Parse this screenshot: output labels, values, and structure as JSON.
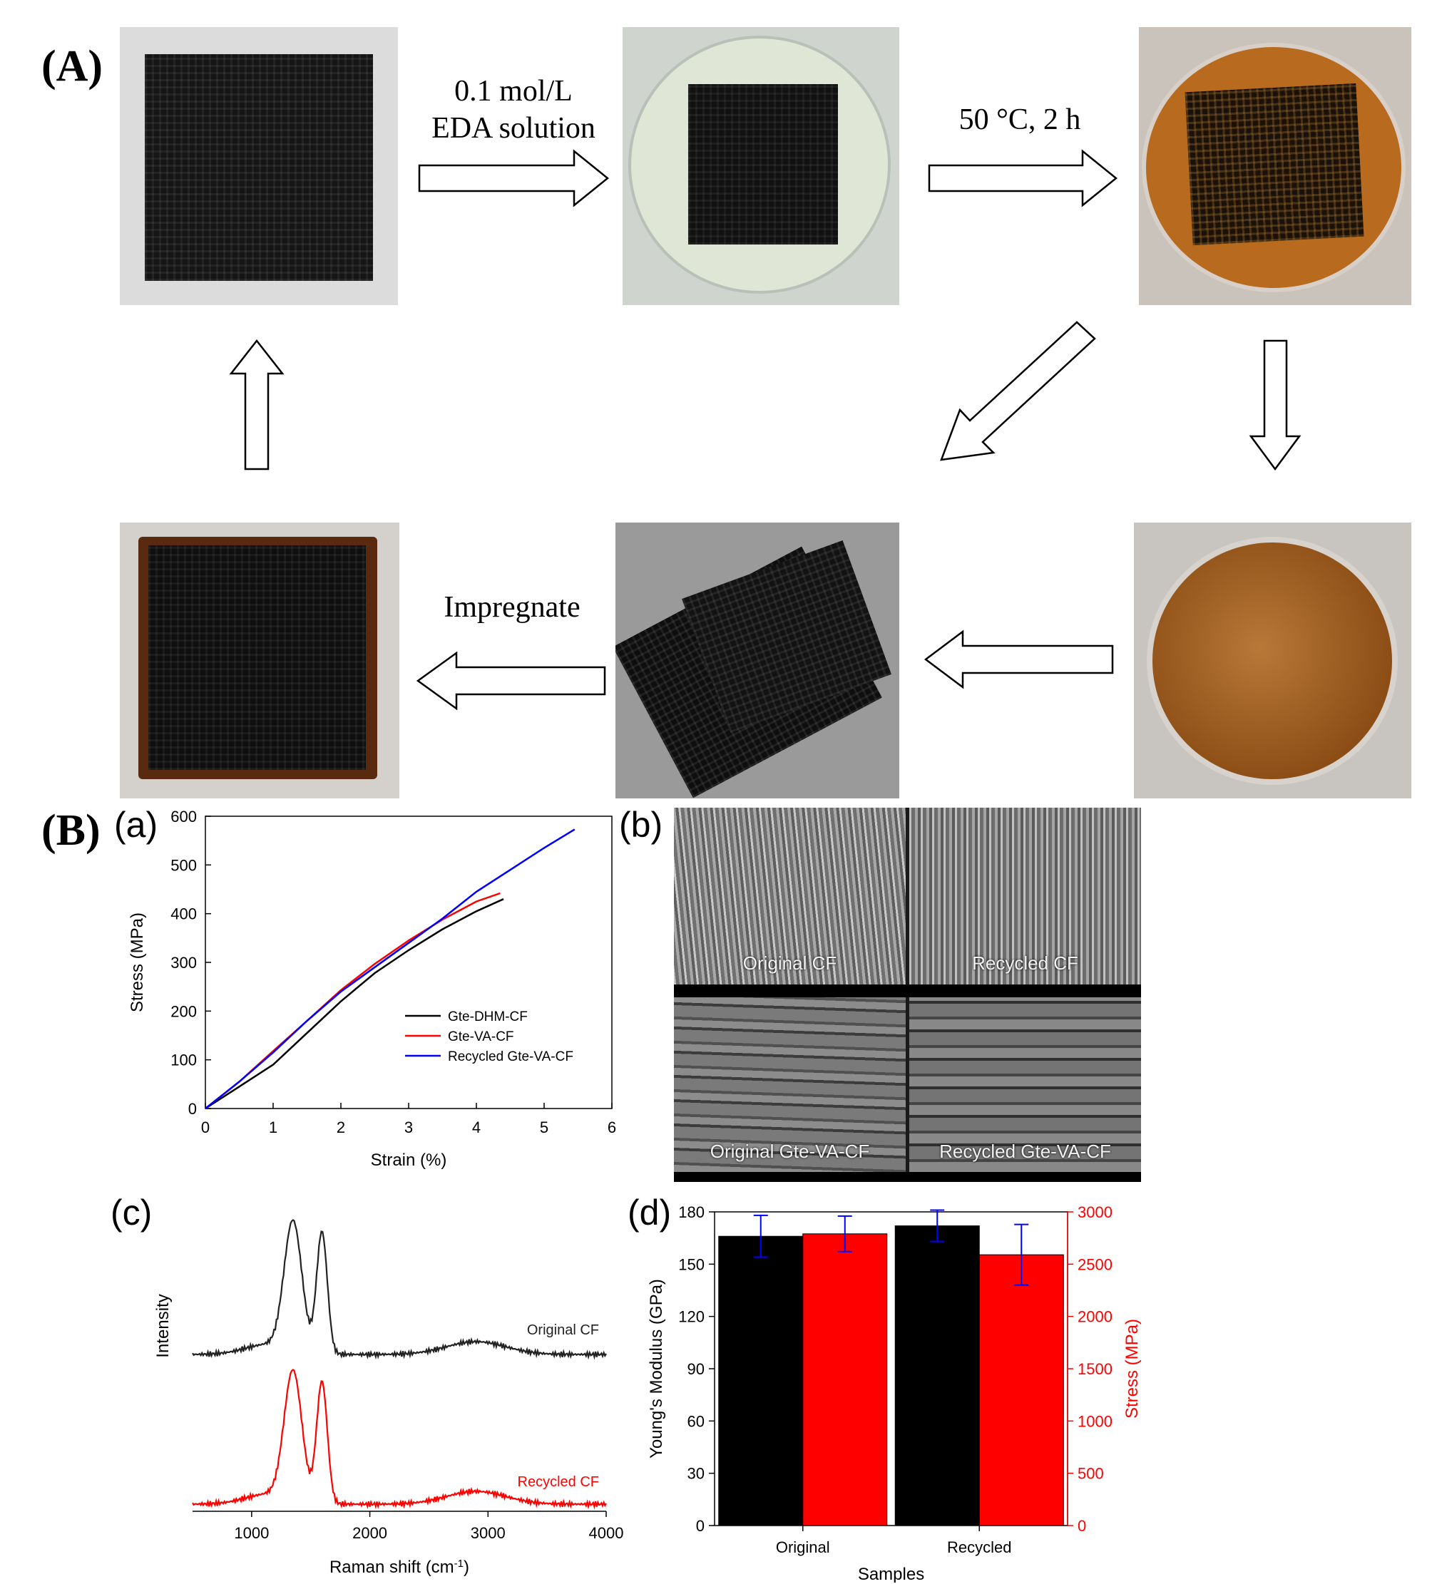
{
  "panelA": {
    "label": "(A)",
    "steps": {
      "solution_line1": "0.1 mol/L",
      "solution_line2": "EDA solution",
      "condition": "50 °C, 2 h",
      "impregnate": "Impregnate"
    }
  },
  "panelB": {
    "label": "(B)",
    "sub_a": "(a)",
    "sub_b": "(b)",
    "sub_c": "(c)",
    "sub_d": "(d)"
  },
  "sem": {
    "tl": "Original CF",
    "tr": "Recycled CF",
    "bl": "Original Gte-VA-CF",
    "br": "Recycled Gte-VA-CF"
  },
  "chart_data": [
    {
      "id": "a",
      "type": "line",
      "xlabel": "Strain (%)",
      "ylabel": "Stress (MPa)",
      "xlim": [
        0,
        6
      ],
      "ylim": [
        0,
        600
      ],
      "xticks": [
        "0",
        "1",
        "2",
        "3",
        "4",
        "5",
        "6"
      ],
      "yticks": [
        "0",
        "100",
        "200",
        "300",
        "400",
        "500",
        "600"
      ],
      "legend_position": "lower-right",
      "series": [
        {
          "name": "Gte-DHM-CF",
          "color": "#000000",
          "x": [
            0,
            0.5,
            1.0,
            1.5,
            2.0,
            2.5,
            3.0,
            3.5,
            4.0,
            4.4
          ],
          "y": [
            0,
            45,
            90,
            155,
            220,
            278,
            325,
            368,
            405,
            430
          ]
        },
        {
          "name": "Gte-VA-CF",
          "color": "#ff0000",
          "x": [
            0,
            0.5,
            1.0,
            1.5,
            2.0,
            2.5,
            3.0,
            3.5,
            4.0,
            4.35
          ],
          "y": [
            0,
            55,
            118,
            180,
            243,
            297,
            345,
            388,
            425,
            442
          ]
        },
        {
          "name": "Recycled Gte-VA-CF",
          "color": "#0000ff",
          "x": [
            0,
            0.5,
            1.0,
            1.5,
            2.0,
            2.5,
            3.0,
            3.5,
            4.0,
            4.5,
            5.0,
            5.45
          ],
          "y": [
            0,
            55,
            115,
            180,
            240,
            290,
            340,
            390,
            445,
            490,
            535,
            573
          ]
        }
      ]
    },
    {
      "id": "c",
      "type": "line",
      "xlabel": "Raman shift (cm",
      "xlabel_sup": "-1",
      "xlabel_end": ")",
      "ylabel": "Intensity",
      "xlim": [
        500,
        4000
      ],
      "xticks": [
        "1000",
        "2000",
        "3000",
        "4000"
      ],
      "series": [
        {
          "name": "Original CF",
          "color": "#222222",
          "offset": 1.0
        },
        {
          "name": "Recycled CF",
          "color": "#ff0000",
          "offset": 0.0
        }
      ],
      "peaks": [
        1350,
        1590
      ]
    },
    {
      "id": "d",
      "type": "bar",
      "xlabel": "Samples",
      "ylabel_left": "Young's Modulus (GPa)",
      "ylabel_right": "Stress (MPa)",
      "categories": [
        "Original",
        "Recycled"
      ],
      "ylim_left": [
        0,
        180
      ],
      "ylim_right": [
        0,
        3000
      ],
      "yticks_left": [
        "0",
        "30",
        "60",
        "90",
        "120",
        "150",
        "180"
      ],
      "yticks_right": [
        "0",
        "500",
        "1000",
        "1500",
        "2000",
        "2500",
        "3000"
      ],
      "modulus": [
        166,
        172
      ],
      "modulus_err": [
        12,
        9
      ],
      "stress": [
        2790,
        2590
      ],
      "stress_err": [
        170,
        290
      ],
      "colors": {
        "modulus": "#000000",
        "stress": "#ff0000",
        "error": "#0000ff"
      }
    }
  ]
}
